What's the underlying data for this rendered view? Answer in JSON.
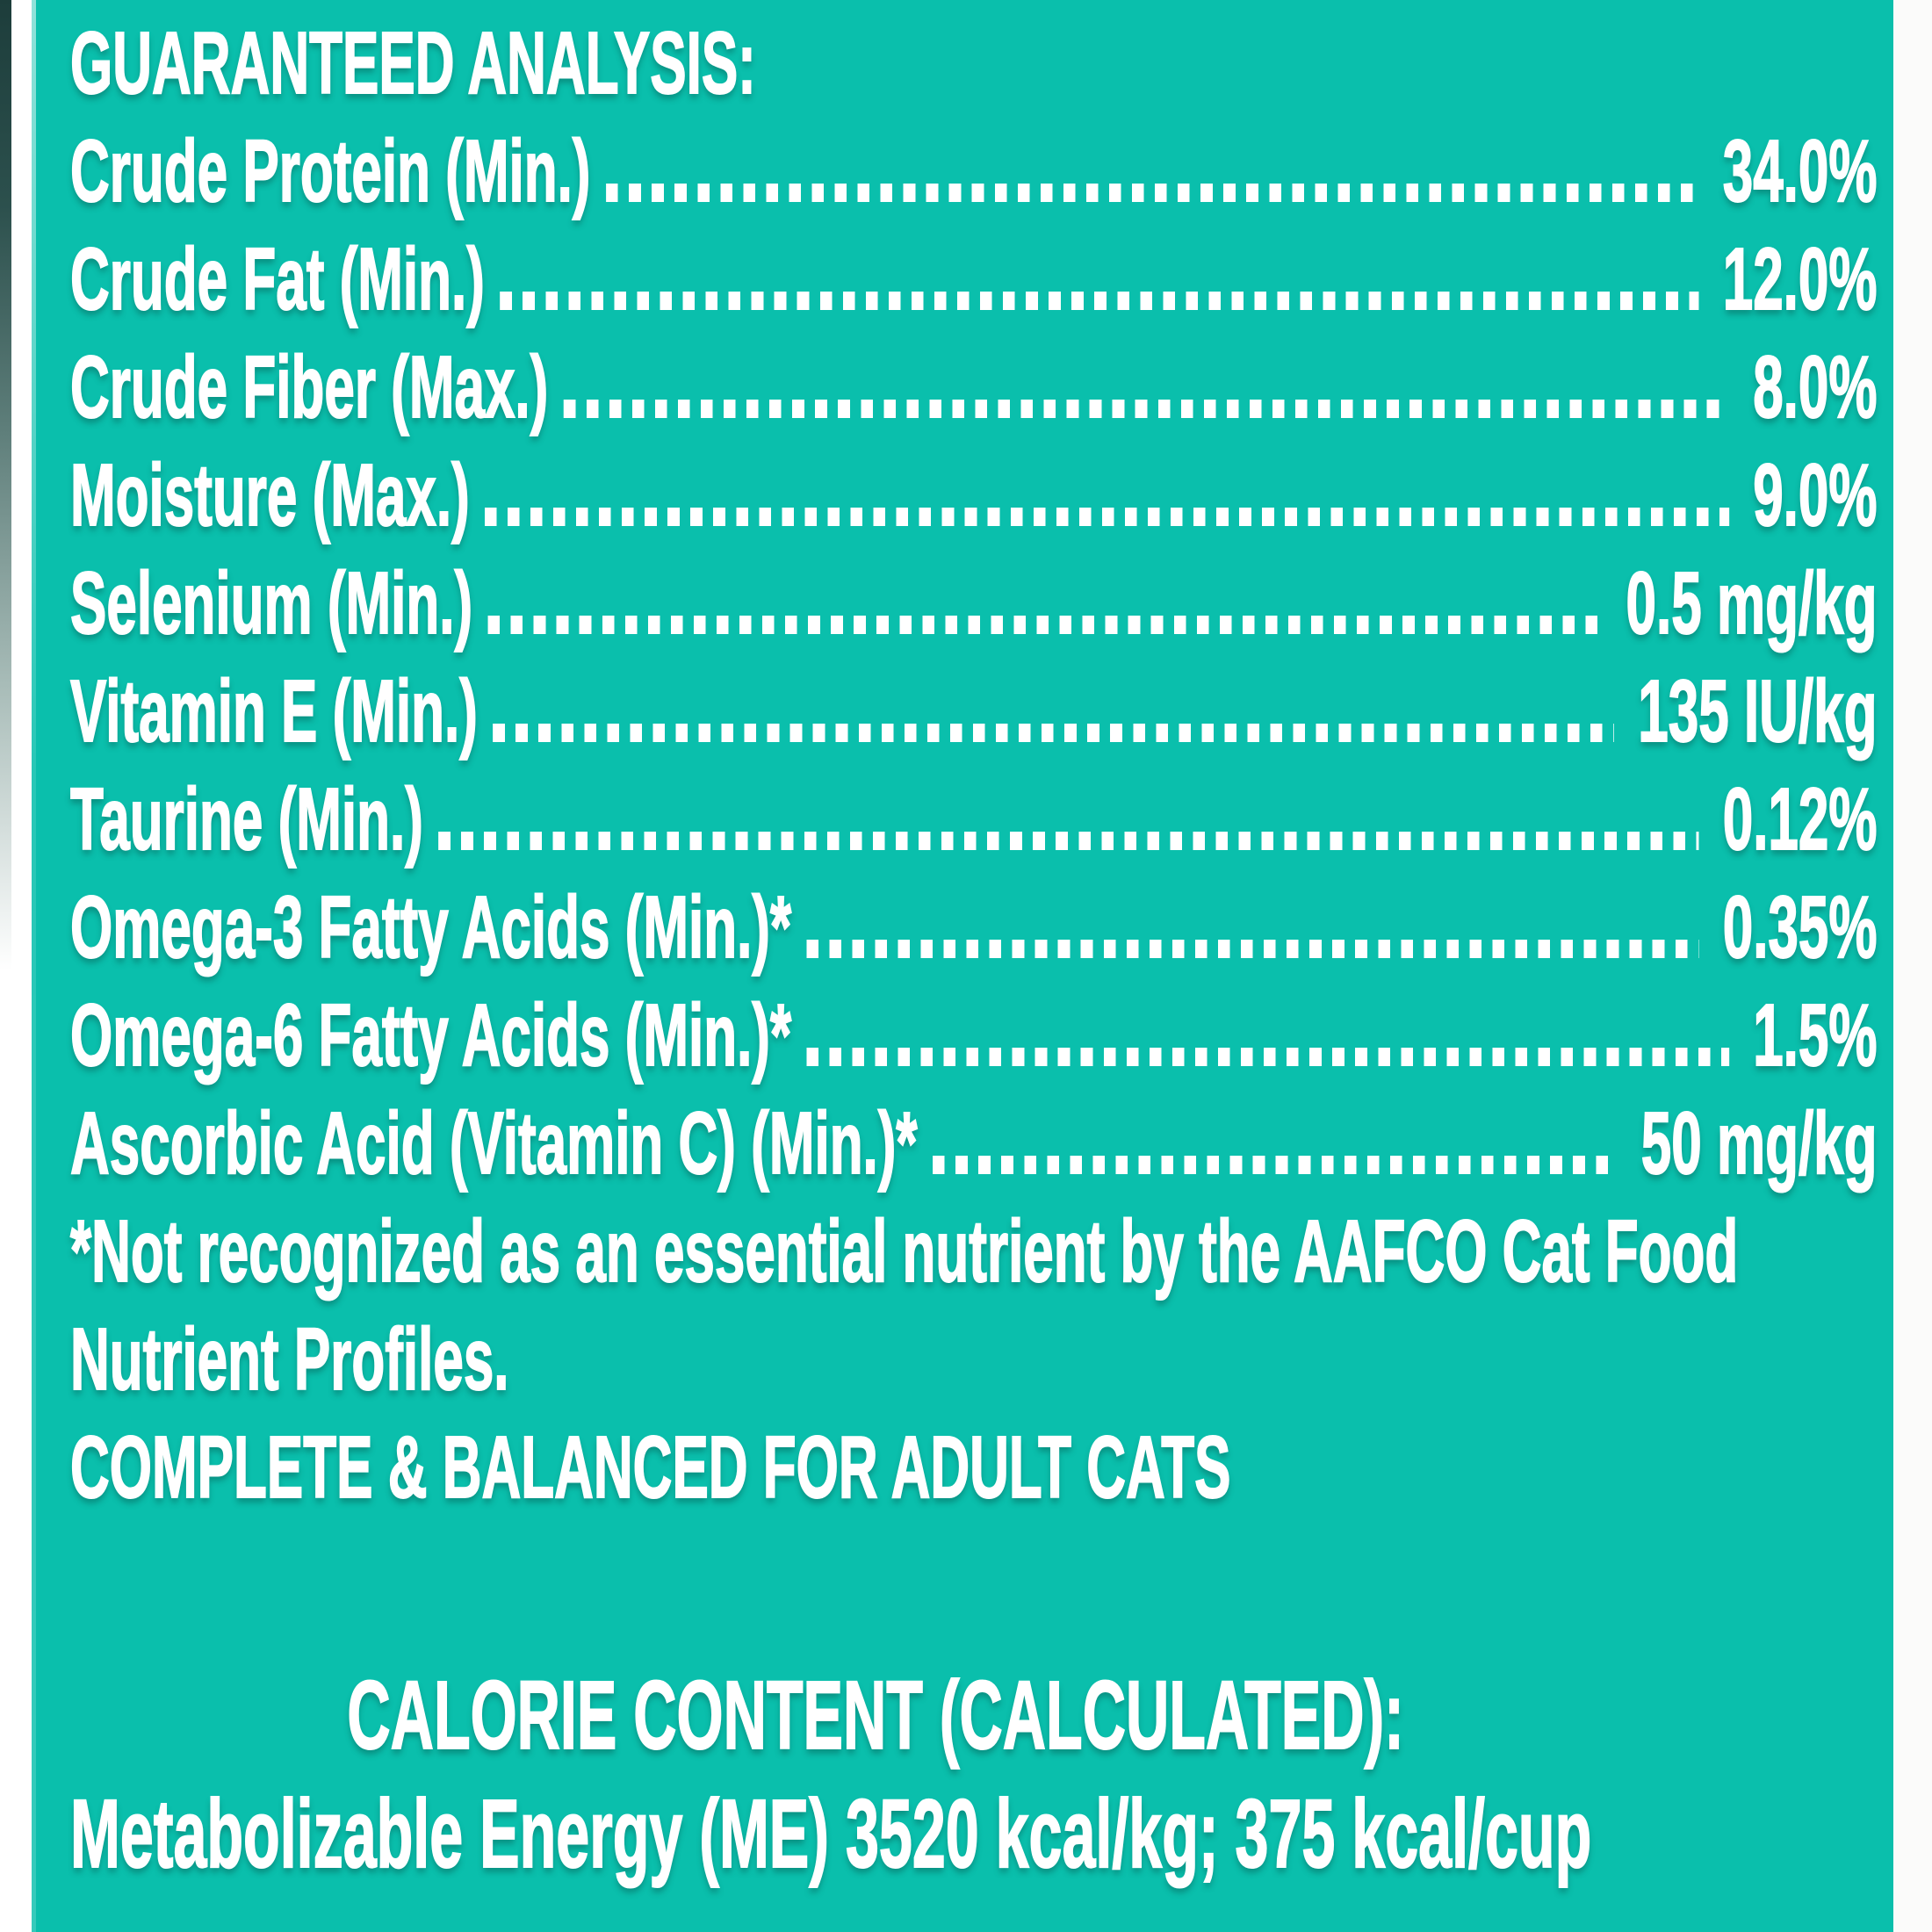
{
  "panel": {
    "background_color": "#0abfac",
    "text_color": "#ffffff",
    "title": "GUARANTEED ANALYSIS:",
    "rows": [
      {
        "name": "Crude Protein (Min.)",
        "value": "34.0%"
      },
      {
        "name": "Crude Fat (Min.)",
        "value": "12.0%"
      },
      {
        "name": "Crude Fiber (Max.)",
        "value": "8.0%"
      },
      {
        "name": "Moisture (Max.)",
        "value": "9.0%"
      },
      {
        "name": "Selenium (Min.)",
        "value": "0.5 mg/kg"
      },
      {
        "name": "Vitamin E (Min.)",
        "value": "135 IU/kg"
      },
      {
        "name": "Taurine (Min.)",
        "value": "0.12%"
      },
      {
        "name": "Omega-3 Fatty Acids (Min.)*",
        "value": "0.35%"
      },
      {
        "name": "Omega-6 Fatty Acids (Min.)*",
        "value": "1.5%"
      },
      {
        "name": "Ascorbic Acid (Vitamin C) (Min.)*",
        "value": "50 mg/kg"
      }
    ],
    "footnote_line1": "*Not recognized as an essential nutrient by the AAFCO Cat Food",
    "footnote_line2": "Nutrient Profiles.",
    "statement": "COMPLETE & BALANCED FOR ADULT CATS",
    "calorie_header": "CALORIE CONTENT (CALCULATED):",
    "calorie_text": "Metabolizable Energy (ME) 3520 kcal/kg; 375 kcal/cup"
  }
}
